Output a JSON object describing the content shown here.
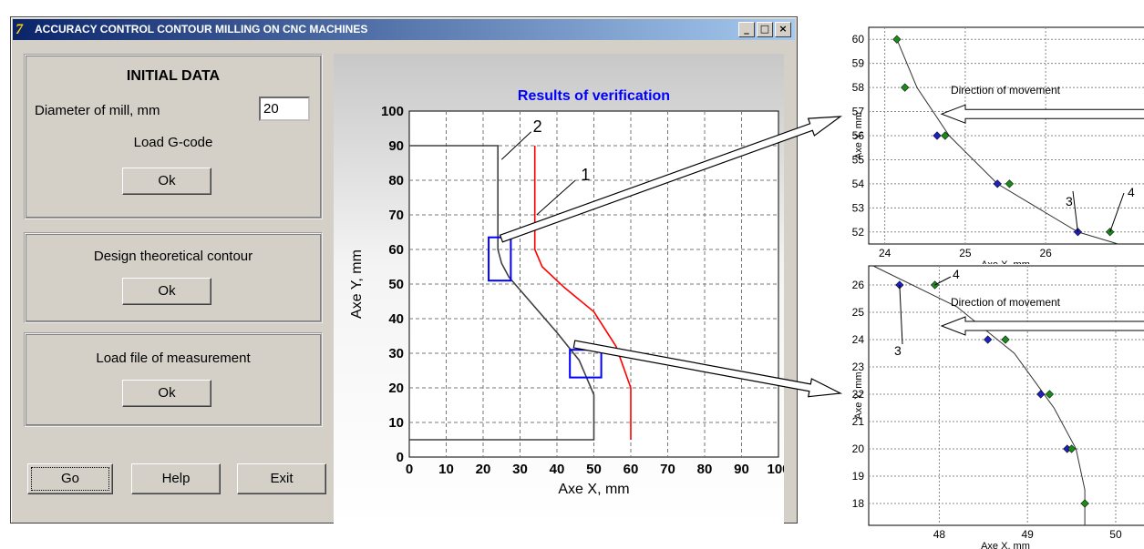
{
  "window": {
    "title": "ACCURACY CONTROL CONTOUR MILLING ON CNC MACHINES",
    "logo_text": "7",
    "buttons": {
      "minimize": "_",
      "maximize": "□",
      "close": "×"
    }
  },
  "initial_data": {
    "heading": "INITIAL DATA",
    "diameter_label": "Diameter of mill, mm",
    "diameter_value": "20",
    "load_gcode_label": "Load G-code",
    "ok_label": "Ok"
  },
  "design": {
    "label": "Design theoretical contour",
    "ok_label": "Ok"
  },
  "measurement": {
    "label": "Load file of measurement",
    "ok_label": "Ok"
  },
  "actions": {
    "go": "Go",
    "help": "Help",
    "exit": "Exit"
  },
  "colors": {
    "accent_blue": "#0000ff",
    "measured_red": "#ff0000",
    "contour_dark": "#404040",
    "point_green": "#1a8a1a",
    "point_blue": "#2020c0"
  },
  "chart_data": [
    {
      "type": "line",
      "title": "Results of verification",
      "xlabel": "Axe X, mm",
      "ylabel": "Axe Y, mm",
      "xlim": [
        0,
        100
      ],
      "ylim": [
        0,
        100
      ],
      "xticks": [
        "0",
        "10",
        "20",
        "30",
        "40",
        "50",
        "60",
        "70",
        "80",
        "90",
        "100"
      ],
      "yticks": [
        "0",
        "10",
        "20",
        "30",
        "40",
        "50",
        "60",
        "70",
        "80",
        "90",
        "100"
      ],
      "grid": true,
      "series": [
        {
          "points": [
            [
              0,
              90
            ],
            [
              24,
              90
            ],
            [
              24,
              60
            ],
            [
              25,
              56
            ],
            [
              27,
              52
            ],
            [
              40,
              36
            ],
            [
              46,
              28
            ],
            [
              50,
              18
            ],
            [
              50,
              5
            ],
            [
              0,
              5
            ]
          ]
        },
        {
          "points": [
            [
              34,
              90
            ],
            [
              34,
              60
            ],
            [
              36,
              55
            ],
            [
              42,
              49
            ],
            [
              50,
              42
            ],
            [
              56,
              32
            ],
            [
              58,
              26
            ],
            [
              60,
              20
            ],
            [
              60,
              5
            ]
          ]
        }
      ],
      "annotations": [
        "1",
        "2"
      ]
    },
    {
      "type": "scatter",
      "xlabel": "Axe X, mm",
      "ylabel": "Axe Y, mm",
      "xlim": [
        23.8,
        27.2
      ],
      "ylim": [
        51.5,
        60.5
      ],
      "xticks": [
        "24",
        "25",
        "26"
      ],
      "yticks": [
        "52",
        "53",
        "54",
        "55",
        "56",
        "57",
        "58",
        "59",
        "60"
      ],
      "grid": true,
      "annotation_text": "Direction of movement",
      "labels": [
        "3",
        "4"
      ],
      "theoretical": [
        [
          24.15,
          60
        ],
        [
          24.4,
          58
        ],
        [
          24.8,
          56
        ],
        [
          25.4,
          54
        ],
        [
          26.4,
          52
        ],
        [
          26.9,
          51.5
        ]
      ],
      "measured_blue": [
        [
          24.65,
          56
        ],
        [
          25.4,
          54
        ],
        [
          26.4,
          52
        ]
      ],
      "measured_green": [
        [
          24.15,
          60
        ],
        [
          24.25,
          58
        ],
        [
          24.75,
          56
        ],
        [
          25.55,
          54
        ],
        [
          26.8,
          52
        ]
      ]
    },
    {
      "type": "scatter",
      "xlabel": "Axe X, mm",
      "ylabel": "Axe Y, mm",
      "xlim": [
        47.2,
        50.3
      ],
      "ylim": [
        17.2,
        26.7
      ],
      "xticks": [
        "48",
        "49",
        "50"
      ],
      "yticks": [
        "18",
        "19",
        "20",
        "21",
        "22",
        "23",
        "24",
        "25",
        "26"
      ],
      "grid": true,
      "annotation_text": "Direction of movement",
      "labels": [
        "3",
        "4"
      ],
      "theoretical": [
        [
          47.25,
          26.7
        ],
        [
          48.2,
          25.2
        ],
        [
          48.85,
          23.5
        ],
        [
          49.3,
          21.5
        ],
        [
          49.55,
          20
        ],
        [
          49.65,
          18.5
        ],
        [
          49.65,
          17.2
        ]
      ],
      "measured_blue": [
        [
          47.55,
          26
        ],
        [
          48.55,
          24
        ],
        [
          49.15,
          22
        ],
        [
          49.45,
          20
        ]
      ],
      "measured_green": [
        [
          47.95,
          26
        ],
        [
          48.75,
          24
        ],
        [
          49.25,
          22
        ],
        [
          49.5,
          20
        ],
        [
          49.65,
          18
        ]
      ]
    }
  ]
}
